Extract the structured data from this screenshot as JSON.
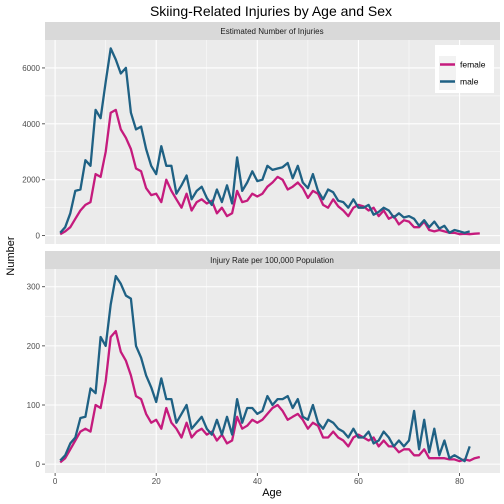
{
  "chart_data": {
    "type": "line",
    "title": "Skiing-Related Injuries by Age and Sex",
    "xlabel": "Age",
    "ylabel": "Number",
    "xlim": [
      -2,
      88
    ],
    "xticks": [
      0,
      20,
      40,
      60,
      80
    ],
    "grid": true,
    "legend_placement": "top-right",
    "colors": {
      "female": "#c51b7d",
      "male": "#1f6184",
      "panel_bg": "#ebebeb",
      "strip_bg": "#d9d9d9",
      "grid": "#ffffff"
    },
    "panels": [
      {
        "strip": "Estimated Number of Injuries",
        "ylim": [
          -300,
          7000
        ],
        "yticks": [
          0,
          2000,
          4000,
          6000
        ],
        "series": [
          {
            "name": "female",
            "x": [
              1,
              2,
              3,
              4,
              5,
              6,
              7,
              8,
              9,
              10,
              11,
              12,
              13,
              14,
              15,
              16,
              17,
              18,
              19,
              20,
              21,
              22,
              23,
              24,
              25,
              26,
              27,
              28,
              29,
              30,
              31,
              32,
              33,
              34,
              35,
              36,
              37,
              38,
              39,
              40,
              41,
              42,
              43,
              44,
              45,
              46,
              47,
              48,
              49,
              50,
              51,
              52,
              53,
              54,
              55,
              56,
              57,
              58,
              59,
              60,
              61,
              62,
              63,
              64,
              65,
              66,
              67,
              68,
              69,
              70,
              71,
              72,
              73,
              74,
              75,
              76,
              77,
              78,
              79,
              80,
              81,
              82,
              83,
              84
            ],
            "values": [
              50,
              150,
              300,
              600,
              900,
              1100,
              1200,
              2200,
              2100,
              3000,
              4400,
              4500,
              3800,
              3500,
              3100,
              2400,
              2300,
              1700,
              1450,
              1500,
              1200,
              2000,
              1600,
              1300,
              1000,
              1500,
              900,
              1200,
              1300,
              1150,
              1250,
              800,
              1000,
              700,
              800,
              1600,
              1200,
              1250,
              1500,
              1400,
              1500,
              1750,
              1900,
              2100,
              2000,
              1650,
              1750,
              1900,
              1700,
              1350,
              1600,
              1500,
              1100,
              1000,
              1300,
              1050,
              900,
              700,
              1000,
              1100,
              1050,
              900,
              1000,
              700,
              900,
              600,
              700,
              400,
              550,
              500,
              300,
              300,
              500,
              200,
              150,
              200,
              150,
              100,
              100,
              50,
              60,
              50,
              70,
              80
            ]
          },
          {
            "name": "male",
            "x": [
              1,
              2,
              3,
              4,
              5,
              6,
              7,
              8,
              9,
              10,
              11,
              12,
              13,
              14,
              15,
              16,
              17,
              18,
              19,
              20,
              21,
              22,
              23,
              24,
              25,
              26,
              27,
              28,
              29,
              30,
              31,
              32,
              33,
              34,
              35,
              36,
              37,
              38,
              39,
              40,
              41,
              42,
              43,
              44,
              45,
              46,
              47,
              48,
              49,
              50,
              51,
              52,
              53,
              54,
              55,
              56,
              57,
              58,
              59,
              60,
              61,
              62,
              63,
              64,
              65,
              66,
              67,
              68,
              69,
              70,
              71,
              72,
              73,
              74,
              75,
              76,
              77,
              78,
              79,
              80,
              81,
              82
            ],
            "values": [
              100,
              300,
              800,
              1600,
              1650,
              2700,
              2500,
              4500,
              4200,
              5500,
              6700,
              6300,
              5800,
              6000,
              4400,
              3800,
              3900,
              3100,
              2500,
              2200,
              3200,
              2500,
              2500,
              1500,
              1800,
              2150,
              1300,
              1600,
              1750,
              1350,
              1100,
              1650,
              1200,
              1800,
              1150,
              2800,
              1600,
              1900,
              2300,
              1950,
              2000,
              2500,
              2350,
              2400,
              2450,
              2600,
              2050,
              2500,
              1900,
              1700,
              2200,
              1600,
              1300,
              1650,
              1550,
              1250,
              1200,
              1000,
              1300,
              1000,
              1000,
              1100,
              750,
              850,
              1000,
              900,
              650,
              800,
              650,
              700,
              600,
              350,
              550,
              300,
              500,
              250,
              350,
              100,
              200,
              150,
              100,
              150
            ]
          }
        ]
      },
      {
        "strip": "Injury Rate per 100,000 Population",
        "ylim": [
          -15,
          330
        ],
        "yticks": [
          0,
          100,
          200,
          300
        ],
        "series": [
          {
            "name": "female",
            "x": [
              1,
              2,
              3,
              4,
              5,
              6,
              7,
              8,
              9,
              10,
              11,
              12,
              13,
              14,
              15,
              16,
              17,
              18,
              19,
              20,
              21,
              22,
              23,
              24,
              25,
              26,
              27,
              28,
              29,
              30,
              31,
              32,
              33,
              34,
              35,
              36,
              37,
              38,
              39,
              40,
              41,
              42,
              43,
              44,
              45,
              46,
              47,
              48,
              49,
              50,
              51,
              52,
              53,
              54,
              55,
              56,
              57,
              58,
              59,
              60,
              61,
              62,
              63,
              64,
              65,
              66,
              67,
              68,
              69,
              70,
              71,
              72,
              73,
              74,
              75,
              76,
              77,
              78,
              79,
              80,
              81,
              82,
              83,
              84
            ],
            "values": [
              3,
              10,
              25,
              40,
              55,
              60,
              55,
              100,
              95,
              140,
              215,
              225,
              190,
              175,
              150,
              115,
              110,
              85,
              70,
              75,
              60,
              95,
              70,
              60,
              45,
              70,
              45,
              55,
              60,
              50,
              55,
              40,
              50,
              35,
              40,
              80,
              60,
              65,
              75,
              70,
              75,
              85,
              95,
              100,
              90,
              75,
              80,
              85,
              75,
              60,
              70,
              65,
              45,
              45,
              55,
              45,
              40,
              30,
              45,
              50,
              45,
              40,
              45,
              30,
              40,
              30,
              30,
              20,
              25,
              25,
              15,
              15,
              25,
              10,
              10,
              10,
              10,
              8,
              8,
              5,
              8,
              6,
              10,
              12
            ]
          },
          {
            "name": "male",
            "x": [
              1,
              2,
              3,
              4,
              5,
              6,
              7,
              8,
              9,
              10,
              11,
              12,
              13,
              14,
              15,
              16,
              17,
              18,
              19,
              20,
              21,
              22,
              23,
              24,
              25,
              26,
              27,
              28,
              29,
              30,
              31,
              32,
              33,
              34,
              35,
              36,
              37,
              38,
              39,
              40,
              41,
              42,
              43,
              44,
              45,
              46,
              47,
              48,
              49,
              50,
              51,
              52,
              53,
              54,
              55,
              56,
              57,
              58,
              59,
              60,
              61,
              62,
              63,
              64,
              65,
              66,
              67,
              68,
              69,
              70,
              71,
              72,
              73,
              74,
              75,
              76,
              77,
              78,
              79,
              80,
              81,
              82
            ],
            "values": [
              6,
              15,
              35,
              45,
              78,
              80,
              128,
              120,
              215,
              200,
              270,
              318,
              305,
              285,
              280,
              200,
              180,
              150,
              130,
              105,
              145,
              110,
              110,
              70,
              85,
              100,
              60,
              70,
              80,
              60,
              50,
              75,
              50,
              80,
              50,
              110,
              70,
              95,
              95,
              85,
              90,
              115,
              100,
              110,
              110,
              115,
              95,
              110,
              80,
              75,
              100,
              70,
              60,
              75,
              70,
              60,
              55,
              45,
              60,
              45,
              45,
              55,
              35,
              40,
              55,
              45,
              30,
              40,
              30,
              40,
              90,
              25,
              75,
              20,
              60,
              15,
              40,
              10,
              15,
              10,
              5,
              30
            ]
          }
        ]
      }
    ]
  }
}
